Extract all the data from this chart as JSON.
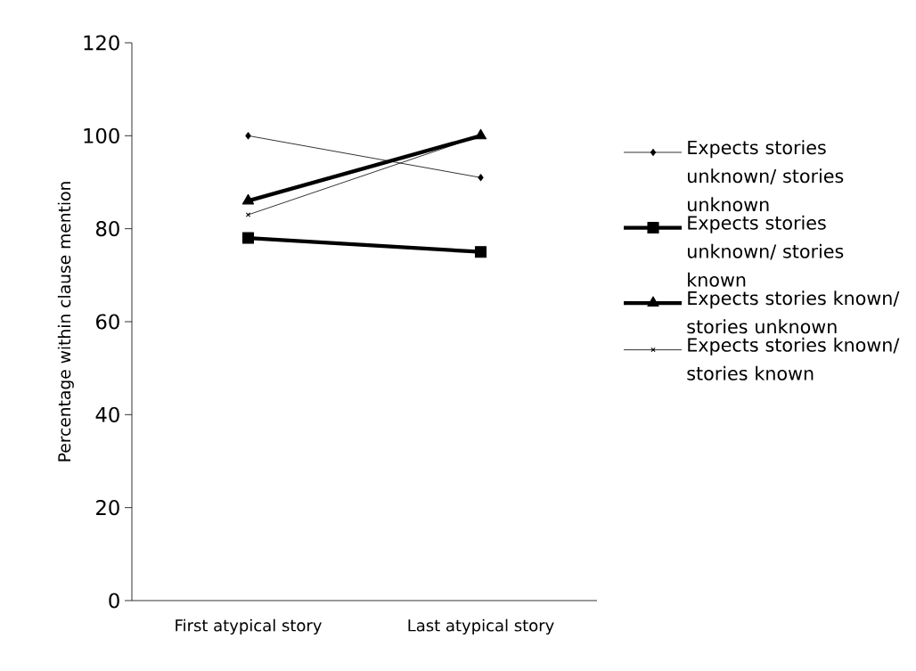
{
  "chart_data": {
    "type": "line",
    "ylabel": "Percentage within clause mention",
    "categories": [
      "First atypical story",
      "Last atypical story"
    ],
    "series": [
      {
        "name": "Expects stories unknown/ stories unknown",
        "color": "#000000",
        "marker": "diamond",
        "values": [
          100,
          91
        ]
      },
      {
        "name": "Expects stories unknown/ stories known",
        "color": "#000000",
        "marker": "square",
        "values": [
          78,
          75
        ]
      },
      {
        "name": "Expects stories known/ stories unknown",
        "color": "#000000",
        "marker": "triangle",
        "values": [
          86,
          100
        ]
      },
      {
        "name": "Expects stories known/ stories known",
        "color": "#000000",
        "marker": "cross",
        "values": [
          83,
          100
        ]
      }
    ],
    "ylim": [
      0,
      120
    ],
    "yticks": [
      0,
      20,
      40,
      60,
      80,
      100,
      120
    ],
    "grid": false,
    "legend": "right"
  }
}
